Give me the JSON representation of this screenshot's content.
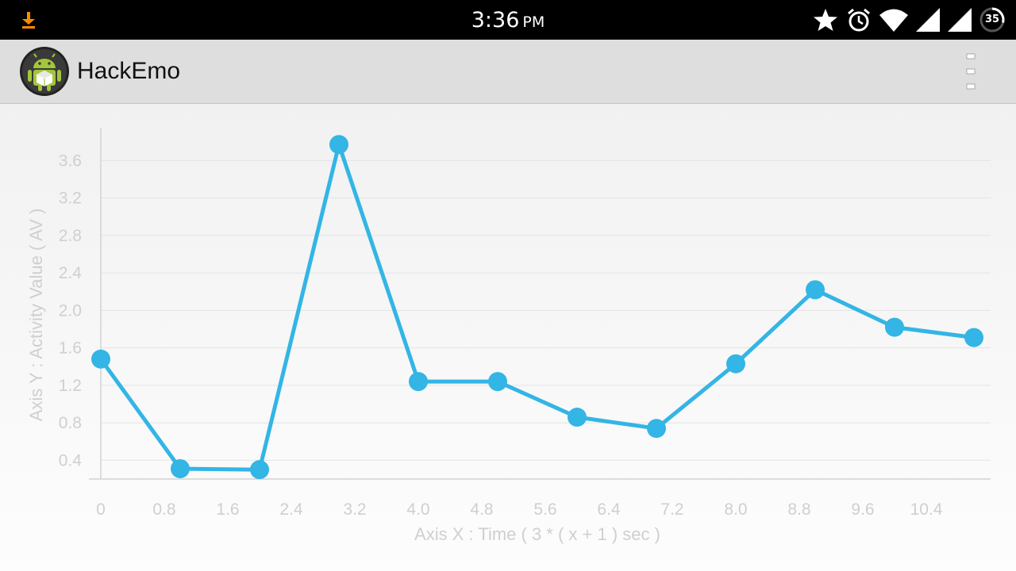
{
  "status_bar": {
    "time": "3:36",
    "ampm": "PM",
    "battery_level": "35"
  },
  "app_bar": {
    "title": "HackEmo"
  },
  "colors": {
    "series": "#33b5e5",
    "grid": "#e4e4e4",
    "axis": "#d2d2d2",
    "label": "#cfcfcf"
  },
  "chart_data": {
    "type": "line",
    "xlabel": "Axis X : Time ( 3 * ( x + 1 ) sec )",
    "ylabel": "Axis Y : Activity Value ( AV )",
    "xlim": [
      0,
      11
    ],
    "ylim": [
      0.2,
      3.95
    ],
    "x_ticks": [
      0,
      0.8,
      1.6,
      2.4,
      3.2,
      4.0,
      4.8,
      5.6,
      6.4,
      7.2,
      8.0,
      8.8,
      9.6,
      10.4
    ],
    "x_tick_labels": [
      "0",
      "0.8",
      "1.6",
      "2.4",
      "3.2",
      "4.0",
      "4.8",
      "5.6",
      "6.4",
      "7.2",
      "8.0",
      "8.8",
      "9.6",
      "10.4"
    ],
    "y_ticks": [
      0.4,
      0.8,
      1.2,
      1.6,
      2.0,
      2.4,
      2.8,
      3.2,
      3.6
    ],
    "y_tick_labels": [
      "0.4",
      "0.8",
      "1.2",
      "1.6",
      "2.0",
      "2.4",
      "2.8",
      "3.2",
      "3.6"
    ],
    "grid": true,
    "series": [
      {
        "x": [
          0,
          1,
          2,
          3,
          4,
          5,
          6,
          7,
          8,
          9,
          10,
          11
        ],
        "values": [
          1.48,
          0.31,
          0.3,
          3.77,
          1.24,
          1.24,
          0.86,
          0.74,
          1.43,
          2.22,
          1.82,
          1.71
        ]
      }
    ]
  }
}
